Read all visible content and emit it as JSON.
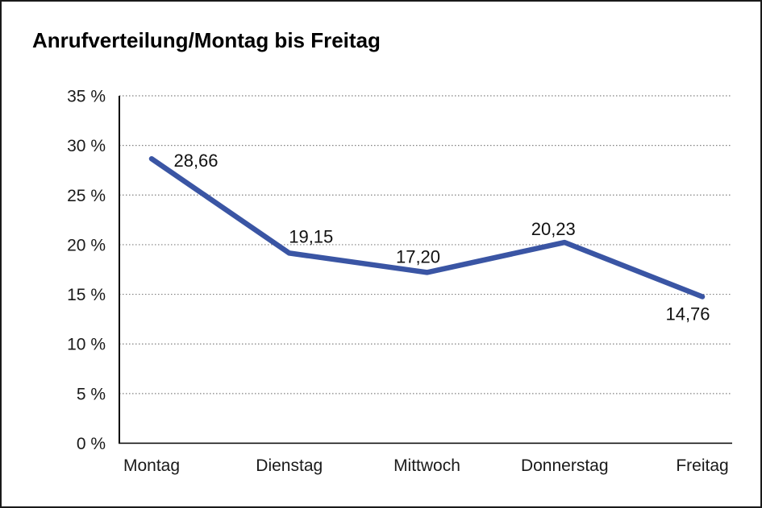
{
  "chart_data": {
    "type": "line",
    "title": "Anrufverteilung/Montag bis Freitag",
    "categories": [
      "Montag",
      "Dienstag",
      "Mittwoch",
      "Donnerstag",
      "Freitag"
    ],
    "values": [
      28.66,
      19.15,
      17.2,
      20.23,
      14.76
    ],
    "value_labels": [
      "28,66",
      "19,15",
      "17,20",
      "20,23",
      "14,76"
    ],
    "y_ticks": [
      "0 %",
      "5 %",
      "10 %",
      "15 %",
      "20 %",
      "25 %",
      "30 %",
      "35 %"
    ],
    "ylim": [
      0,
      35
    ],
    "y_tick_step": 5,
    "xlabel": "",
    "ylabel": "",
    "legend": "none",
    "grid": "horizontal-dotted",
    "line_color": "#3A55A4",
    "axis_color": "#000000",
    "gridline_color": "#808080",
    "background_color": "#ffffff"
  }
}
